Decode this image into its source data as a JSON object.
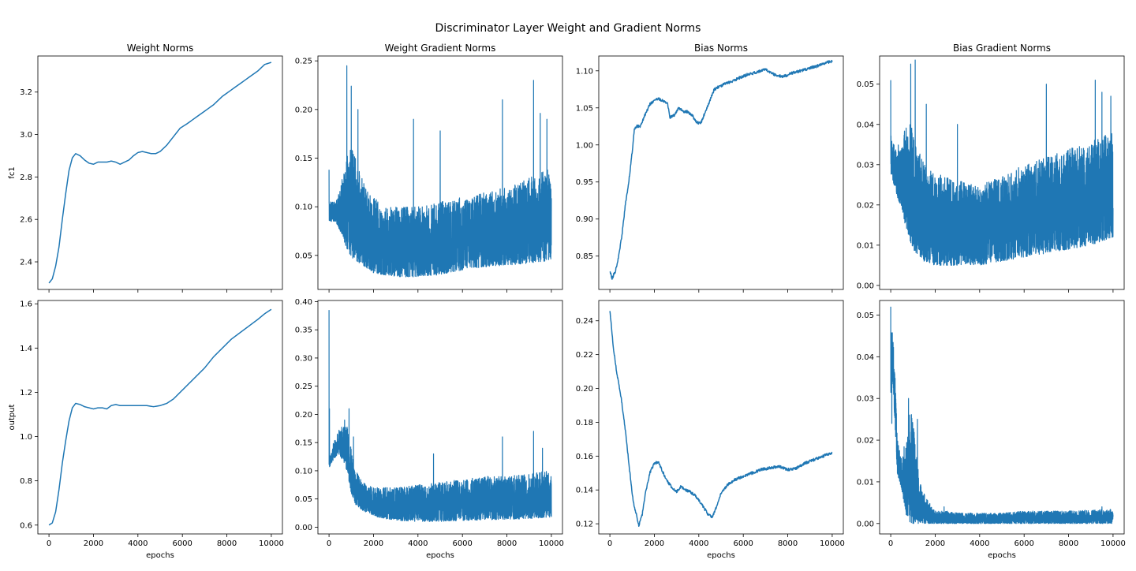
{
  "figure": {
    "suptitle": "Discriminator Layer Weight and Gradient Norms",
    "line_color": "#1f77b4"
  },
  "chart_data": [
    {
      "type": "line",
      "title": "Weight Norms",
      "xlabel": "",
      "ylabel": "fc1",
      "xlim": [
        -500,
        10500
      ],
      "ylim": [
        2.27,
        3.37
      ],
      "xticks": [
        0,
        2000,
        4000,
        6000,
        8000,
        10000
      ],
      "xtick_labels": [],
      "yticks": [
        2.4,
        2.6,
        2.8,
        3.0,
        3.2
      ],
      "ytick_labels": [
        "2.4",
        "2.6",
        "2.8",
        "3.0",
        "3.2"
      ],
      "style": "smooth",
      "series": [
        {
          "x": [
            0,
            150,
            300,
            450,
            600,
            750,
            900,
            1050,
            1200,
            1400,
            1600,
            1800,
            2000,
            2200,
            2400,
            2600,
            2800,
            3000,
            3200,
            3400,
            3600,
            3800,
            4000,
            4200,
            4400,
            4600,
            4800,
            5000,
            5300,
            5600,
            5900,
            6200,
            6600,
            7000,
            7400,
            7800,
            8200,
            8600,
            9000,
            9400,
            9700,
            10000
          ],
          "y": [
            2.3,
            2.32,
            2.38,
            2.47,
            2.6,
            2.72,
            2.83,
            2.89,
            2.91,
            2.9,
            2.88,
            2.865,
            2.86,
            2.87,
            2.87,
            2.87,
            2.875,
            2.87,
            2.86,
            2.87,
            2.88,
            2.9,
            2.915,
            2.92,
            2.915,
            2.91,
            2.91,
            2.92,
            2.95,
            2.99,
            3.03,
            3.05,
            3.08,
            3.11,
            3.14,
            3.18,
            3.21,
            3.24,
            3.27,
            3.3,
            3.33,
            3.34
          ]
        }
      ]
    },
    {
      "type": "line",
      "title": "Weight Gradient Norms",
      "xlabel": "",
      "ylabel": "",
      "xlim": [
        -500,
        10500
      ],
      "ylim": [
        0.015,
        0.255
      ],
      "xticks": [
        0,
        2000,
        4000,
        6000,
        8000,
        10000
      ],
      "xtick_labels": [],
      "yticks": [
        0.05,
        0.1,
        0.15,
        0.2,
        0.25
      ],
      "ytick_labels": [
        "0.05",
        "0.10",
        "0.15",
        "0.20",
        "0.25"
      ],
      "style": "noisy",
      "series": [
        {
          "x": [
            0,
            300,
            600,
            900,
            1200,
            1500,
            2000,
            2500,
            3000,
            4000,
            5000,
            6000,
            7000,
            8000,
            9000,
            10000
          ],
          "upper": [
            0.105,
            0.105,
            0.13,
            0.17,
            0.15,
            0.13,
            0.11,
            0.1,
            0.1,
            0.1,
            0.105,
            0.11,
            0.115,
            0.12,
            0.13,
            0.14
          ],
          "lower": [
            0.085,
            0.085,
            0.07,
            0.05,
            0.045,
            0.04,
            0.032,
            0.03,
            0.028,
            0.028,
            0.03,
            0.035,
            0.038,
            0.04,
            0.042,
            0.045
          ],
          "spikes": [
            [
              0,
              0.138
            ],
            [
              800,
              0.245
            ],
            [
              1000,
              0.224
            ],
            [
              1300,
              0.2
            ],
            [
              3800,
              0.19
            ],
            [
              5000,
              0.178
            ],
            [
              7800,
              0.21
            ],
            [
              9200,
              0.23
            ],
            [
              9500,
              0.196
            ],
            [
              9800,
              0.19
            ]
          ]
        }
      ]
    },
    {
      "type": "line",
      "title": "Bias Norms",
      "xlabel": "",
      "ylabel": "",
      "xlim": [
        -500,
        10500
      ],
      "ylim": [
        0.805,
        1.12
      ],
      "xticks": [
        0,
        2000,
        4000,
        6000,
        8000,
        10000
      ],
      "xtick_labels": [],
      "yticks": [
        0.85,
        0.9,
        0.95,
        1.0,
        1.05,
        1.1
      ],
      "ytick_labels": [
        "0.85",
        "0.90",
        "0.95",
        "1.00",
        "1.05",
        "1.10"
      ],
      "style": "jitter",
      "series": [
        {
          "x": [
            0,
            100,
            250,
            400,
            550,
            700,
            850,
            1000,
            1100,
            1200,
            1350,
            1500,
            1650,
            1800,
            2000,
            2200,
            2400,
            2600,
            2700,
            2900,
            3100,
            3300,
            3500,
            3700,
            3900,
            4100,
            4300,
            4500,
            4700,
            5000,
            5400,
            5800,
            6200,
            6600,
            7000,
            7400,
            7800,
            8200,
            8600,
            9000,
            9400,
            9700,
            10000
          ],
          "y": [
            0.83,
            0.82,
            0.83,
            0.85,
            0.88,
            0.92,
            0.95,
            0.99,
            1.02,
            1.025,
            1.025,
            1.035,
            1.045,
            1.055,
            1.06,
            1.062,
            1.06,
            1.055,
            1.037,
            1.04,
            1.05,
            1.045,
            1.045,
            1.04,
            1.03,
            1.03,
            1.045,
            1.06,
            1.075,
            1.08,
            1.085,
            1.09,
            1.095,
            1.098,
            1.102,
            1.095,
            1.092,
            1.097,
            1.1,
            1.104,
            1.107,
            1.111,
            1.113
          ]
        }
      ]
    },
    {
      "type": "line",
      "title": "Bias Gradient Norms",
      "xlabel": "",
      "ylabel": "",
      "xlim": [
        -500,
        10500
      ],
      "ylim": [
        -0.001,
        0.057
      ],
      "xticks": [
        0,
        2000,
        4000,
        6000,
        8000,
        10000
      ],
      "xtick_labels": [],
      "yticks": [
        0.0,
        0.01,
        0.02,
        0.03,
        0.04,
        0.05
      ],
      "ytick_labels": [
        "0.00",
        "0.01",
        "0.02",
        "0.03",
        "0.04",
        "0.05"
      ],
      "style": "noisy",
      "series": [
        {
          "x": [
            0,
            200,
            500,
            800,
            1100,
            1500,
            2000,
            2500,
            3000,
            4000,
            5000,
            6000,
            7000,
            8000,
            9000,
            10000
          ],
          "upper": [
            0.038,
            0.034,
            0.036,
            0.042,
            0.036,
            0.03,
            0.028,
            0.027,
            0.026,
            0.025,
            0.027,
            0.03,
            0.032,
            0.034,
            0.036,
            0.038
          ],
          "lower": [
            0.028,
            0.024,
            0.018,
            0.012,
            0.008,
            0.006,
            0.005,
            0.005,
            0.005,
            0.005,
            0.006,
            0.007,
            0.008,
            0.009,
            0.01,
            0.012
          ],
          "spikes": [
            [
              0,
              0.051
            ],
            [
              900,
              0.055
            ],
            [
              1100,
              0.056
            ],
            [
              1600,
              0.045
            ],
            [
              3000,
              0.04
            ],
            [
              7000,
              0.05
            ],
            [
              9200,
              0.051
            ],
            [
              9500,
              0.048
            ],
            [
              9900,
              0.047
            ]
          ]
        }
      ]
    },
    {
      "type": "line",
      "title": "",
      "xlabel": "epochs",
      "ylabel": "output",
      "xlim": [
        -500,
        10500
      ],
      "ylim": [
        0.56,
        1.615
      ],
      "xticks": [
        0,
        2000,
        4000,
        6000,
        8000,
        10000
      ],
      "xtick_labels": [
        "0",
        "2000",
        "4000",
        "6000",
        "8000",
        "10000"
      ],
      "yticks": [
        0.6,
        0.8,
        1.0,
        1.2,
        1.4,
        1.6
      ],
      "ytick_labels": [
        "0.6",
        "0.8",
        "1.0",
        "1.2",
        "1.4",
        "1.6"
      ],
      "style": "smooth",
      "series": [
        {
          "x": [
            0,
            150,
            300,
            450,
            600,
            750,
            900,
            1050,
            1200,
            1400,
            1600,
            1800,
            2000,
            2200,
            2400,
            2600,
            2800,
            3000,
            3200,
            3500,
            3800,
            4100,
            4400,
            4700,
            5000,
            5300,
            5600,
            5900,
            6200,
            6600,
            7000,
            7400,
            7800,
            8200,
            8600,
            9000,
            9400,
            9700,
            10000
          ],
          "y": [
            0.6,
            0.61,
            0.66,
            0.76,
            0.88,
            0.98,
            1.07,
            1.13,
            1.15,
            1.145,
            1.135,
            1.13,
            1.125,
            1.13,
            1.13,
            1.125,
            1.14,
            1.145,
            1.14,
            1.14,
            1.14,
            1.14,
            1.14,
            1.135,
            1.14,
            1.15,
            1.17,
            1.2,
            1.23,
            1.27,
            1.31,
            1.36,
            1.4,
            1.44,
            1.47,
            1.5,
            1.53,
            1.555,
            1.575
          ]
        }
      ]
    },
    {
      "type": "line",
      "title": "",
      "xlabel": "epochs",
      "ylabel": "",
      "xlim": [
        -500,
        10500
      ],
      "ylim": [
        -0.012,
        0.402
      ],
      "xticks": [
        0,
        2000,
        4000,
        6000,
        8000,
        10000
      ],
      "xtick_labels": [
        "0",
        "2000",
        "4000",
        "6000",
        "8000",
        "10000"
      ],
      "yticks": [
        0.0,
        0.05,
        0.1,
        0.15,
        0.2,
        0.25,
        0.3,
        0.35,
        0.4
      ],
      "ytick_labels": [
        "0.00",
        "0.05",
        "0.10",
        "0.15",
        "0.20",
        "0.25",
        "0.30",
        "0.35",
        "0.40"
      ],
      "style": "noisy",
      "series": [
        {
          "x": [
            0,
            200,
            400,
            600,
            800,
            1000,
            1200,
            1500,
            2000,
            2500,
            3000,
            4000,
            5000,
            6000,
            7000,
            8000,
            9000,
            10000
          ],
          "upper": [
            0.12,
            0.15,
            0.17,
            0.18,
            0.18,
            0.14,
            0.1,
            0.08,
            0.07,
            0.07,
            0.07,
            0.075,
            0.08,
            0.085,
            0.09,
            0.09,
            0.095,
            0.1
          ],
          "lower": [
            0.105,
            0.12,
            0.13,
            0.12,
            0.1,
            0.06,
            0.04,
            0.03,
            0.02,
            0.015,
            0.012,
            0.01,
            0.01,
            0.012,
            0.013,
            0.014,
            0.015,
            0.018
          ],
          "spikes": [
            [
              0,
              0.385
            ],
            [
              20,
              0.21
            ],
            [
              700,
              0.19
            ],
            [
              900,
              0.21
            ],
            [
              1100,
              0.16
            ],
            [
              4700,
              0.13
            ],
            [
              7800,
              0.16
            ],
            [
              9200,
              0.17
            ],
            [
              9600,
              0.14
            ]
          ]
        }
      ]
    },
    {
      "type": "line",
      "title": "",
      "xlabel": "epochs",
      "ylabel": "",
      "xlim": [
        -500,
        10500
      ],
      "ylim": [
        0.114,
        0.252
      ],
      "xticks": [
        0,
        2000,
        4000,
        6000,
        8000,
        10000
      ],
      "xtick_labels": [
        "0",
        "2000",
        "4000",
        "6000",
        "8000",
        "10000"
      ],
      "yticks": [
        0.12,
        0.14,
        0.16,
        0.18,
        0.2,
        0.22,
        0.24
      ],
      "ytick_labels": [
        "0.12",
        "0.14",
        "0.16",
        "0.18",
        "0.20",
        "0.22",
        "0.24"
      ],
      "style": "jitter",
      "series": [
        {
          "x": [
            0,
            150,
            300,
            500,
            700,
            900,
            1050,
            1200,
            1300,
            1450,
            1600,
            1800,
            2000,
            2200,
            2400,
            2600,
            2800,
            3000,
            3200,
            3400,
            3600,
            3800,
            4000,
            4200,
            4400,
            4600,
            4800,
            5000,
            5300,
            5600,
            6000,
            6400,
            6800,
            7200,
            7600,
            8000,
            8400,
            8800,
            9200,
            9600,
            10000
          ],
          "y": [
            0.246,
            0.225,
            0.21,
            0.195,
            0.175,
            0.15,
            0.133,
            0.125,
            0.119,
            0.125,
            0.138,
            0.15,
            0.156,
            0.156,
            0.15,
            0.145,
            0.141,
            0.139,
            0.142,
            0.14,
            0.139,
            0.137,
            0.134,
            0.13,
            0.126,
            0.124,
            0.13,
            0.138,
            0.143,
            0.146,
            0.148,
            0.15,
            0.152,
            0.153,
            0.154,
            0.152,
            0.153,
            0.156,
            0.158,
            0.16,
            0.162
          ]
        }
      ]
    },
    {
      "type": "line",
      "title": "",
      "xlabel": "epochs",
      "ylabel": "",
      "xlim": [
        -500,
        10500
      ],
      "ylim": [
        -0.0025,
        0.0535
      ],
      "xticks": [
        0,
        2000,
        4000,
        6000,
        8000,
        10000
      ],
      "xtick_labels": [
        "0",
        "2000",
        "4000",
        "6000",
        "8000",
        "10000"
      ],
      "yticks": [
        0.0,
        0.01,
        0.02,
        0.03,
        0.04,
        0.05
      ],
      "ytick_labels": [
        "0.00",
        "0.01",
        "0.02",
        "0.03",
        "0.04",
        "0.05"
      ],
      "style": "noisy",
      "series": [
        {
          "x": [
            0,
            100,
            200,
            300,
            500,
            700,
            900,
            1100,
            1300,
            1600,
            2000,
            2500,
            3000,
            4000,
            5000,
            6000,
            7000,
            8000,
            9000,
            10000
          ],
          "upper": [
            0.05,
            0.045,
            0.035,
            0.02,
            0.015,
            0.022,
            0.028,
            0.02,
            0.01,
            0.006,
            0.003,
            0.003,
            0.0025,
            0.0025,
            0.0025,
            0.003,
            0.003,
            0.003,
            0.0032,
            0.0035
          ],
          "lower": [
            0.03,
            0.035,
            0.022,
            0.012,
            0.008,
            0.002,
            0.0,
            0.0,
            0.0,
            0.0,
            0.0,
            0.0,
            0.0,
            0.0,
            0.0,
            0.0,
            0.0,
            0.0,
            0.0,
            0.0
          ],
          "spikes": [
            [
              0,
              0.052
            ],
            [
              50,
              0.024
            ],
            [
              800,
              0.03
            ],
            [
              1200,
              0.025
            ],
            [
              2400,
              0.004
            ],
            [
              9500,
              0.004
            ]
          ]
        }
      ]
    }
  ]
}
